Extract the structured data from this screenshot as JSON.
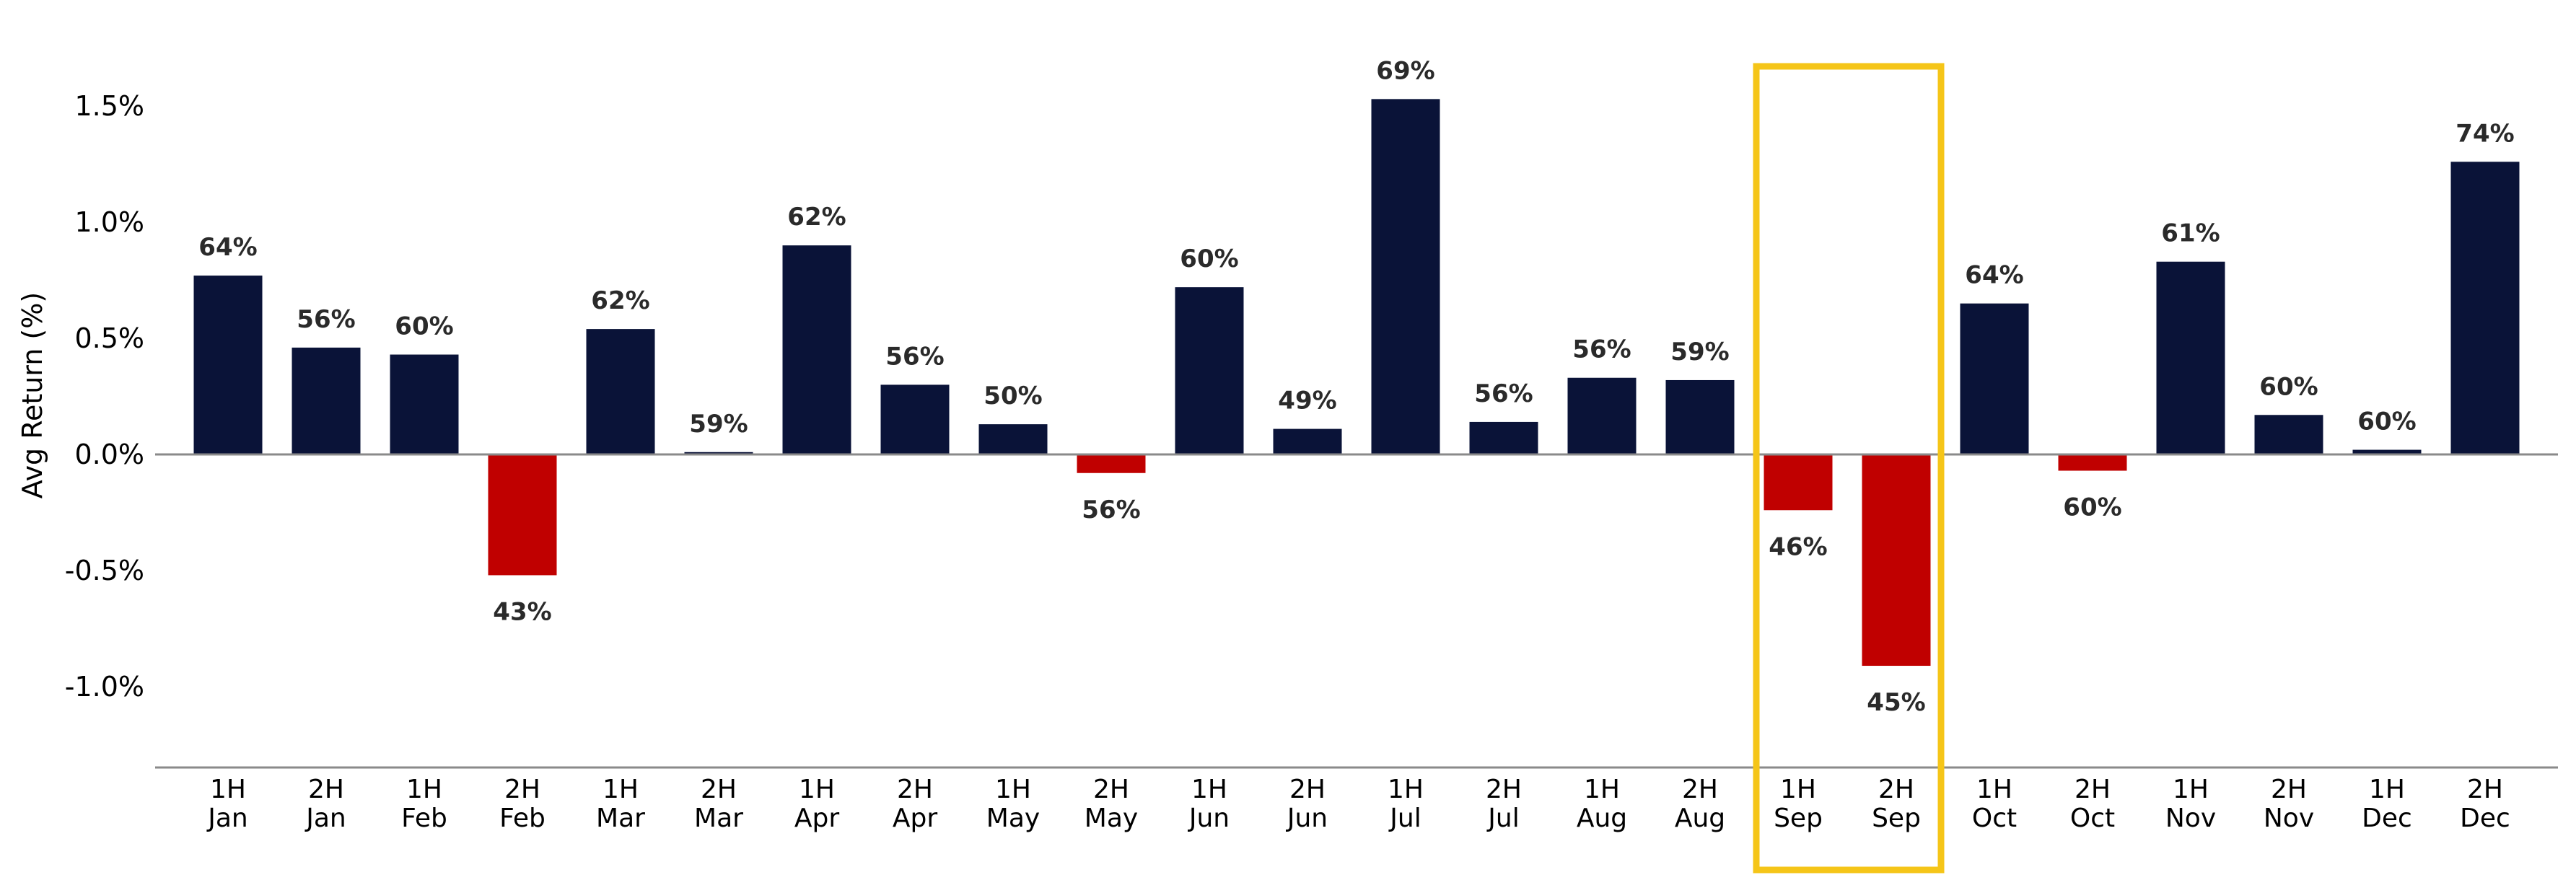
{
  "chart_data": {
    "type": "bar",
    "title": "",
    "xlabel": "",
    "ylabel": "Avg Return (%)",
    "ylim": [
      -1.35,
      1.7
    ],
    "yticks": [
      -1.0,
      -0.5,
      0.0,
      0.5,
      1.0,
      1.5
    ],
    "ytick_labels": [
      "-1.0%",
      "-0.5%",
      "0.0%",
      "0.5%",
      "1.0%",
      "1.5%"
    ],
    "grid": false,
    "colors": {
      "positive": "#0a1338",
      "negative": "#c00000",
      "highlight": "#f5c518",
      "axis": "#8a8a8a"
    },
    "categories": [
      [
        "1H",
        "Jan"
      ],
      [
        "2H",
        "Jan"
      ],
      [
        "1H",
        "Feb"
      ],
      [
        "2H",
        "Feb"
      ],
      [
        "1H",
        "Mar"
      ],
      [
        "2H",
        "Mar"
      ],
      [
        "1H",
        "Apr"
      ],
      [
        "2H",
        "Apr"
      ],
      [
        "1H",
        "May"
      ],
      [
        "2H",
        "May"
      ],
      [
        "1H",
        "Jun"
      ],
      [
        "2H",
        "Jun"
      ],
      [
        "1H",
        "Jul"
      ],
      [
        "2H",
        "Jul"
      ],
      [
        "1H",
        "Aug"
      ],
      [
        "2H",
        "Aug"
      ],
      [
        "1H",
        "Sep"
      ],
      [
        "2H",
        "Sep"
      ],
      [
        "1H",
        "Oct"
      ],
      [
        "2H",
        "Oct"
      ],
      [
        "1H",
        "Nov"
      ],
      [
        "2H",
        "Nov"
      ],
      [
        "1H",
        "Dec"
      ],
      [
        "2H",
        "Dec"
      ]
    ],
    "values": [
      0.77,
      0.46,
      0.43,
      -0.52,
      0.54,
      0.01,
      0.9,
      0.3,
      0.13,
      -0.08,
      0.72,
      0.11,
      1.53,
      0.14,
      0.33,
      0.32,
      -0.24,
      -0.91,
      0.65,
      -0.07,
      0.83,
      0.17,
      0.02,
      1.26
    ],
    "data_labels": [
      "64%",
      "56%",
      "60%",
      "43%",
      "62%",
      "59%",
      "62%",
      "56%",
      "50%",
      "56%",
      "60%",
      "49%",
      "69%",
      "56%",
      "56%",
      "59%",
      "46%",
      "45%",
      "64%",
      "60%",
      "61%",
      "60%",
      "60%",
      "74%"
    ],
    "highlight": {
      "from_category": 16,
      "to_category": 17
    }
  }
}
